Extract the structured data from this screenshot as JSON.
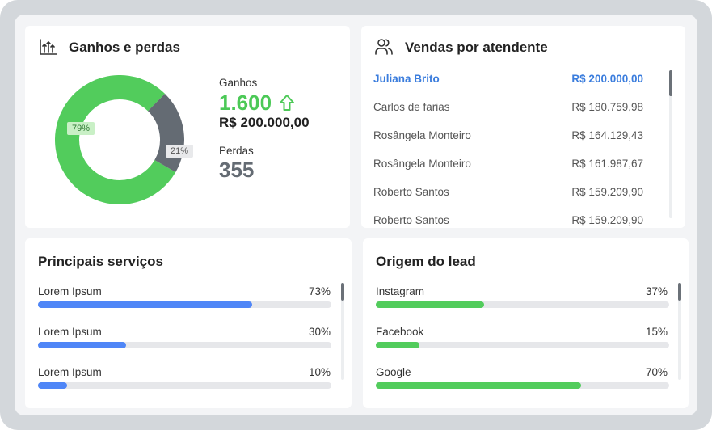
{
  "gains_losses": {
    "title": "Ganhos e perdas",
    "chart": {
      "type": "pie",
      "values": [
        79,
        21
      ],
      "value_labels": [
        "79%",
        "21%"
      ],
      "colors": [
        "#52cc5c",
        "#646b73"
      ]
    },
    "gains_label": "Ganhos",
    "gains_count": "1.600",
    "gains_amount": "R$ 200.000,00",
    "losses_label": "Perdas",
    "losses_count": 355
  },
  "sales": {
    "title": "Vendas por atendente",
    "rows": [
      {
        "name": "Juliana Brito",
        "amount": "R$ 200.000,00"
      },
      {
        "name": "Carlos de farias",
        "amount": "R$ 180.759,98"
      },
      {
        "name": "Rosângela Monteiro",
        "amount": "R$ 164.129,43"
      },
      {
        "name": "Rosângela Monteiro",
        "amount": "R$ 161.987,67"
      },
      {
        "name": "Roberto Santos",
        "amount": "R$ 159.209,90"
      },
      {
        "name": "Roberto Santos",
        "amount": "R$ 159.209,90"
      }
    ]
  },
  "services": {
    "title": "Principais serviços",
    "color": "#4f86f7",
    "items": [
      {
        "label": "Lorem Ipsum",
        "value": 73,
        "value_label": "73%"
      },
      {
        "label": "Lorem Ipsum",
        "value": 30,
        "value_label": "30%"
      },
      {
        "label": "Lorem Ipsum",
        "value": 10,
        "value_label": "10%"
      }
    ]
  },
  "lead_origin": {
    "title": "Origem do lead",
    "color": "#52cc5c",
    "items": [
      {
        "label": "Instagram",
        "value": 37,
        "value_label": "37%"
      },
      {
        "label": "Facebook",
        "value": 15,
        "value_label": "15%"
      },
      {
        "label": "Google",
        "value": 70,
        "value_label": "70%"
      }
    ]
  }
}
